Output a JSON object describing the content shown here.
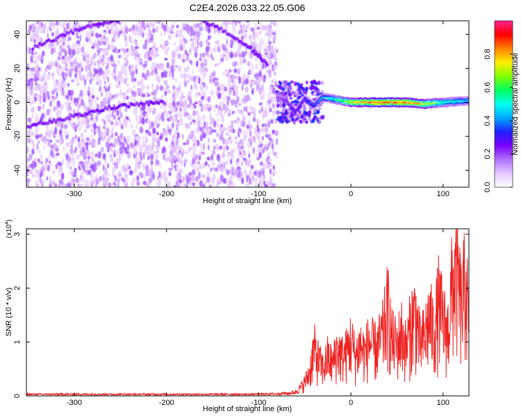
{
  "figure": {
    "title": "C2E4.2026.033.22.05.G06"
  },
  "chart_data": [
    {
      "type": "heatmap",
      "name": "spectrogram",
      "xlabel": "Height of straight line (km)",
      "ylabel": "Frequency (Hz)",
      "xlim": [
        -352,
        128
      ],
      "ylim": [
        -50,
        48
      ],
      "x_ticks": [
        -300,
        -200,
        -100,
        0,
        100
      ],
      "y_ticks": [
        -40,
        -20,
        0,
        20,
        40
      ],
      "colorbar": {
        "label": "Normalized spectral amplitude",
        "range": [
          0,
          1
        ],
        "ticks": [
          "0.0",
          "0.2",
          "0.4",
          "0.6",
          "0.8"
        ],
        "tick_values": [
          0.0,
          0.2,
          0.4,
          0.6,
          0.8
        ],
        "colormap": [
          "#ffffff",
          "#e6c8ff",
          "#b070ff",
          "#7a00ff",
          "#2020ff",
          "#00aaff",
          "#00ffee",
          "#00ff60",
          "#80ff00",
          "#ffee00",
          "#ff8000",
          "#ff0000",
          "#ff2090"
        ]
      },
      "noise_region_x": [
        -352,
        -80
      ],
      "transition_region_x": [
        -80,
        -30
      ],
      "signal_line": {
        "x": [
          -80,
          -70,
          -60,
          -50,
          -40,
          -30,
          -20,
          -10,
          0,
          20,
          40,
          60,
          80,
          100,
          128
        ],
        "frequency": [
          3,
          1,
          -6,
          2,
          -2,
          3,
          2,
          1,
          0,
          0,
          0,
          0,
          -1,
          0,
          1
        ],
        "amplitude": [
          0.2,
          0.25,
          0.3,
          0.35,
          0.35,
          0.45,
          0.5,
          0.6,
          0.75,
          0.85,
          0.9,
          0.85,
          0.75,
          0.55,
          0.45
        ]
      },
      "faint_tracks": [
        {
          "x": [
            -350,
            -320,
            -290,
            -260,
            -230,
            -200
          ],
          "frequency": [
            -14,
            -11,
            -7,
            -3,
            -1,
            0
          ]
        },
        {
          "x": [
            -345,
            -310,
            -280,
            -250
          ],
          "frequency": [
            32,
            40,
            45,
            48
          ]
        },
        {
          "x": [
            -160,
            -130,
            -105,
            -90
          ],
          "frequency": [
            48,
            40,
            30,
            22
          ]
        }
      ]
    },
    {
      "type": "line",
      "name": "snr",
      "xlabel": "Height of straight line (km)",
      "ylabel": "SNR (10 * v/v)",
      "scale_label": "(x10",
      "scale_exponent": "4",
      "scale_suffix": ")",
      "xlim": [
        -352,
        128
      ],
      "ylim": [
        0,
        3.1
      ],
      "x_ticks": [
        -300,
        -200,
        -100,
        0,
        100
      ],
      "y_ticks": [
        0,
        1,
        2,
        3
      ],
      "series": [
        {
          "color": "#ee2222",
          "x": [
            -352,
            -300,
            -250,
            -200,
            -150,
            -100,
            -80,
            -70,
            -60,
            -55,
            -50,
            -45,
            -40,
            -35,
            -30,
            -25,
            -20,
            -15,
            -10,
            -5,
            0,
            5,
            10,
            15,
            20,
            25,
            30,
            35,
            40,
            45,
            50,
            55,
            60,
            65,
            70,
            75,
            80,
            85,
            90,
            95,
            100,
            105,
            110,
            115,
            120,
            125,
            128
          ],
          "y": [
            0.03,
            0.03,
            0.03,
            0.03,
            0.03,
            0.03,
            0.04,
            0.05,
            0.1,
            0.2,
            0.35,
            0.6,
            1.2,
            0.9,
            0.7,
            1.0,
            0.8,
            1.2,
            1.0,
            1.1,
            1.4,
            1.0,
            1.3,
            1.1,
            1.4,
            1.2,
            1.3,
            1.6,
            2.2,
            1.4,
            1.3,
            1.6,
            1.2,
            1.8,
            2.1,
            1.3,
            1.5,
            2.0,
            1.6,
            2.3,
            1.9,
            1.6,
            2.8,
            3.1,
            2.2,
            3.0,
            1.5
          ]
        }
      ]
    }
  ]
}
